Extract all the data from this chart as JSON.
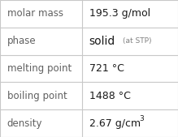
{
  "rows": [
    {
      "label": "molar mass",
      "value": "195.3 g/mol",
      "type": "simple"
    },
    {
      "label": "phase",
      "value_main": "solid",
      "value_sub": "(at STP)",
      "type": "phase"
    },
    {
      "label": "melting point",
      "value": "721 °C",
      "type": "simple"
    },
    {
      "label": "boiling point",
      "value": "1488 °C",
      "type": "simple"
    },
    {
      "label": "density",
      "value": "2.67 g/cm",
      "superscript": "3",
      "type": "density"
    }
  ],
  "col_split": 0.46,
  "bg_color": "#ffffff",
  "border_color": "#c8c8c8",
  "label_color": "#606060",
  "value_color": "#1a1a1a",
  "sub_color": "#808080",
  "label_fontsize": 8.5,
  "value_fontsize": 9.0,
  "sub_fontsize": 6.5,
  "super_fontsize": 6.5
}
